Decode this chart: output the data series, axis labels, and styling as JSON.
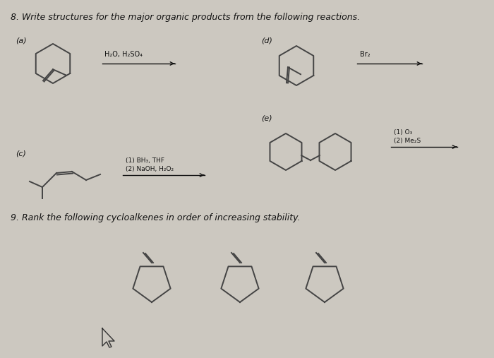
{
  "bg_color": "#ccc8c0",
  "title_q8": "8. Write structures for the major organic products from the following reactions.",
  "title_q9": "9. Rank the following cycloalkenes in order of increasing stability.",
  "label_a": "(a)",
  "label_d": "(d)",
  "label_e": "(e)",
  "label_c": "(c)",
  "reagent_a_1": "H₂O, H₂SO₄",
  "reagent_d": "Br₂",
  "reagent_e_1": "(1) O₃",
  "reagent_e_2": "(2) Me₂S",
  "reagent_c_1": "(1) BH₃, THF",
  "reagent_c_2": "(2) NaOH, H₂O₂",
  "text_color": "#111111",
  "struct_color": "#444444",
  "line_width": 1.4
}
